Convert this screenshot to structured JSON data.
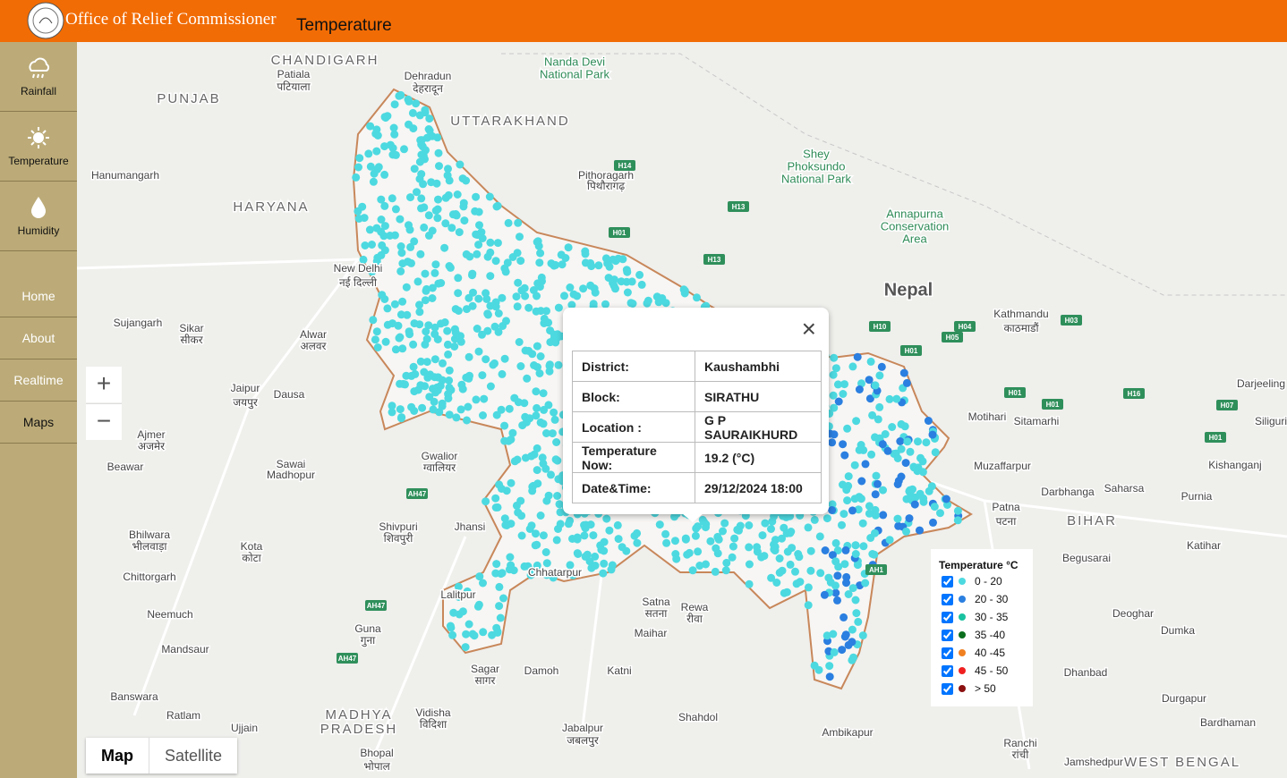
{
  "header": {
    "org": "Office of Relief Commissioner",
    "page": "Temperature"
  },
  "sidebar": {
    "layers": [
      "Rainfall",
      "Temperature",
      "Humidity"
    ],
    "nav": [
      "Home",
      "About",
      "Realtime",
      "Maps"
    ]
  },
  "map_controls": {
    "zoom_in": "+",
    "zoom_out": "−",
    "map_type": [
      "Map",
      "Satellite"
    ]
  },
  "popup": {
    "close": "×",
    "rows": [
      {
        "label": "District:",
        "value": "Kaushambhi"
      },
      {
        "label": "Block:",
        "value": "SIRATHU"
      },
      {
        "label": "Location :",
        "value": "G P SAURAIKHURD"
      },
      {
        "label": "Temperature Now:",
        "value": "19.2 (°C)"
      },
      {
        "label": "Date&Time:",
        "value": "29/12/2024 18:00"
      }
    ]
  },
  "legend": {
    "title": "Temperature °C",
    "items": [
      {
        "label": "0 - 20",
        "color": "#4dd9e0"
      },
      {
        "label": "20 - 30",
        "color": "#2b7fe0"
      },
      {
        "label": "30 - 35",
        "color": "#19c2a0"
      },
      {
        "label": "35 -40",
        "color": "#0a6e1e"
      },
      {
        "label": "40 -45",
        "color": "#f08020"
      },
      {
        "label": "45 - 50",
        "color": "#f02020"
      },
      {
        "label": "> 50",
        "color": "#8b1010"
      }
    ]
  },
  "map": {
    "labels": [
      "CHANDIGARH",
      "Patiala",
      "पटियाला",
      "Dehradun",
      "देहरादून",
      "PUNJAB",
      "UTTARAKHAND",
      "Nanda Devi",
      "National Park",
      "HARYANA",
      "Pithoragarh",
      "पिथौरागढ़",
      "Shey",
      "Phoksundo",
      "National Park",
      "Annapurna",
      "Conservation",
      "Area",
      "Nepal",
      "Kathmandu",
      "काठमाडौं",
      "New Delhi",
      "नई दिल्ली",
      "Jaipur",
      "जयपुर",
      "Alwar",
      "अलवर",
      "Sikar",
      "सीकर",
      "Sujangarh",
      "Hanumangarh",
      "Ajmer",
      "अजमेर",
      "Beawar",
      "Bhilwara",
      "भीलवाड़ा",
      "Kota",
      "कोटा",
      "Dausa",
      "Sawai",
      "Madhopur",
      "Gwalior",
      "ग्वालियर",
      "Shivpuri",
      "शिवपुरी",
      "Jhansi",
      "Chhatarpur",
      "Lalitpur",
      "Guna",
      "गुना",
      "Sagar",
      "सागर",
      "Damoh",
      "Katni",
      "Satna",
      "सतना",
      "Rewa",
      "रीवा",
      "Maihar",
      "Shahdol",
      "Jabalpur",
      "जबलपुर",
      "Ambikapur",
      "Ranchi",
      "रांची",
      "Vidisha",
      "विदिशा",
      "MADHYA",
      "PRADESH",
      "Bhopal",
      "भोपाल",
      "Ujjain",
      "Ratlam",
      "Banswara",
      "Mandsaur",
      "Neemuch",
      "Chittorgarh",
      "Motihari",
      "Sitamarhi",
      "Muzaffarpur",
      "Darbhanga",
      "Saharsa",
      "Purnia",
      "Patna",
      "पटना",
      "BIHAR",
      "Kishanganj",
      "Katihar",
      "Begusarai",
      "Deoghar",
      "Dumka",
      "Dhanbad",
      "Durgapur",
      "Bardhaman",
      "Jamshedpur",
      "WEST BENGAL",
      "Darjeeling",
      "Siliguri"
    ],
    "shields": [
      "H14",
      "H13",
      "H01",
      "H13",
      "H10",
      "H05",
      "H04",
      "H03",
      "H01",
      "H01",
      "H16",
      "H07",
      "H01",
      "H01",
      "AH47",
      "AH47",
      "AH47",
      "AH1"
    ]
  }
}
